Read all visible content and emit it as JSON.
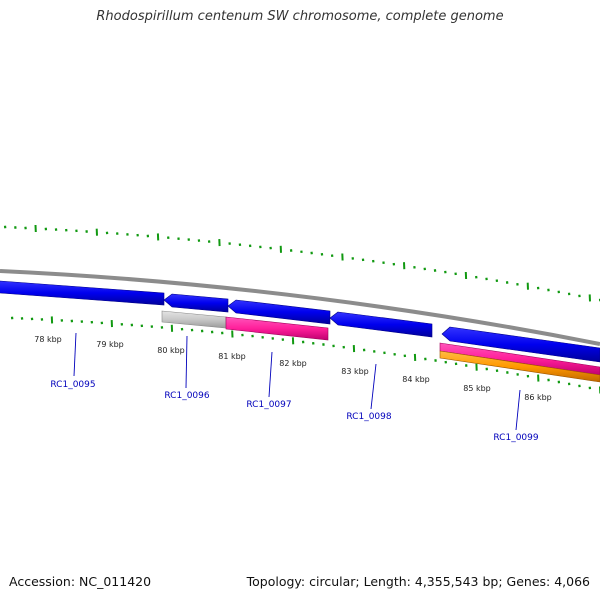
{
  "title": "Rhodospirillum centenum SW chromosome, complete genome",
  "footer": {
    "accession": "Accession: NC_011420",
    "summary": "Topology: circular; Length: 4,355,543 bp; Genes: 4,066"
  },
  "colors": {
    "backbone": "#8c8c8c",
    "cds": "#0000ee",
    "rna": "#ff1f9a",
    "pseudo": "#c8c8c8",
    "orange": "#ff9900",
    "tick": "#119911",
    "gene_label": "#0000bb",
    "kbp_label": "#222222"
  },
  "scale": {
    "kbp_labels": [
      "78 kbp",
      "79 kbp",
      "80 kbp",
      "81 kbp",
      "82 kbp",
      "83 kbp",
      "84 kbp",
      "85 kbp",
      "86 kbp"
    ]
  },
  "genes": [
    "RC1_0095",
    "RC1_0096",
    "RC1_0097",
    "RC1_0098",
    "RC1_0099"
  ]
}
